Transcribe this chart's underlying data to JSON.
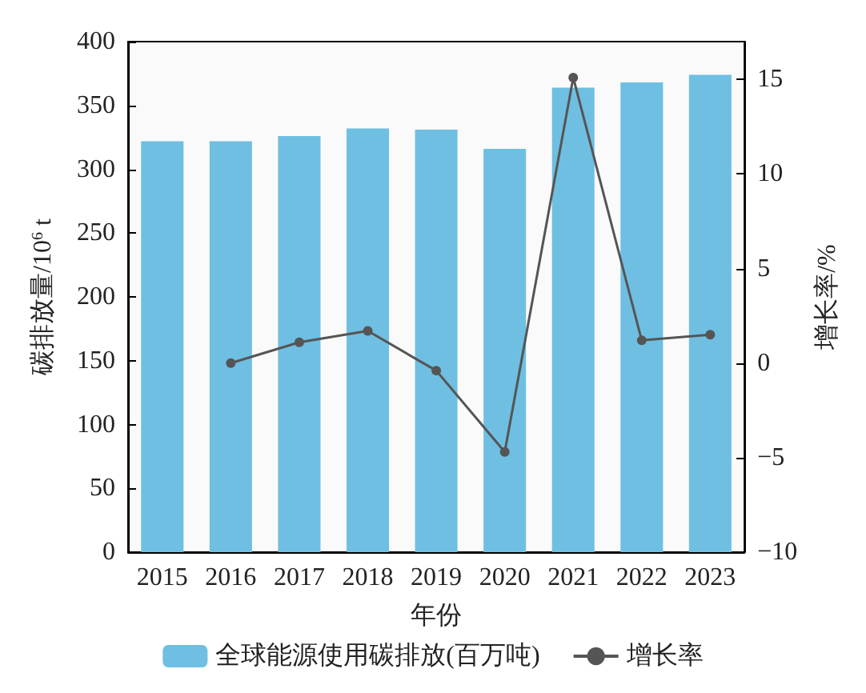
{
  "chart_data": {
    "type": "bar",
    "xlabel": "年份",
    "ylabel": "碳排放量/10$^{6}$ t",
    "y2label": "增长率/%",
    "categories": [
      "2015",
      "2016",
      "2017",
      "2018",
      "2019",
      "2020",
      "2021",
      "2022",
      "2023"
    ],
    "series": [
      {
        "name": "全球能源使用碳排放(百万吨)",
        "color": "#6fbfe2",
        "values": [
          322,
          322,
          326,
          332,
          331,
          316,
          364,
          368,
          374
        ]
      },
      {
        "name": "增长率",
        "type": "line",
        "axis": "y2",
        "color": "#555555",
        "marker": "circle",
        "values": [
          null,
          0,
          1.1,
          1.7,
          -0.4,
          -4.7,
          15.1,
          1.2,
          1.5
        ]
      }
    ],
    "ylim": [
      0,
      400
    ],
    "yticks": [
      0,
      50,
      100,
      150,
      200,
      250,
      300,
      350,
      400
    ],
    "y2lim": [
      -10,
      17
    ],
    "y2ticks": [
      -10,
      -5,
      0,
      5,
      10,
      15
    ],
    "legend": "bottom",
    "grid": false
  }
}
